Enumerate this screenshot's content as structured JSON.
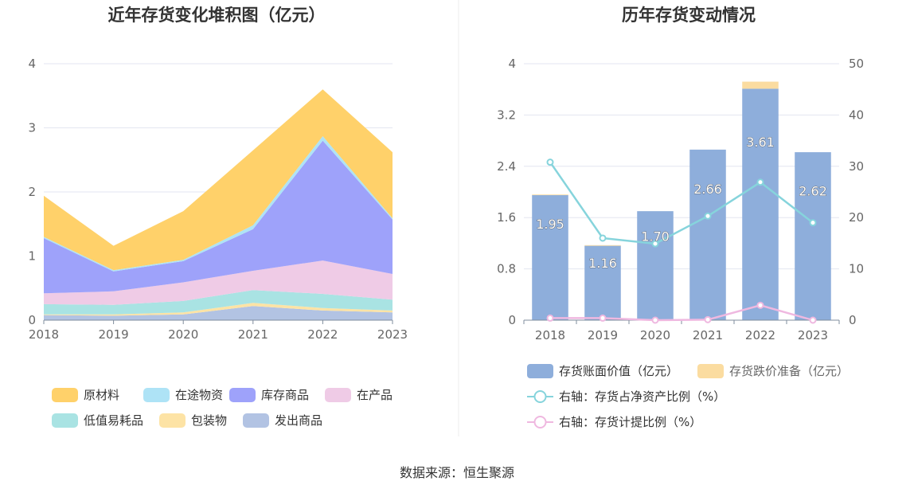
{
  "source": "数据来源：恒生聚源",
  "colors": {
    "原材料": "#ffd16a",
    "在途物资": "#aee3f6",
    "库存商品": "#9ea2fa",
    "在产品": "#efcbe6",
    "低值易耗品": "#a9e3e3",
    "包装物": "#fde3a5",
    "发出商品": "#b2c3e3",
    "bar_main": "#8eaedb",
    "bar_reserve": "#fbdca0",
    "line_ratio": "#86d4dc",
    "line_provision": "#efb8e0",
    "grid": "#e3e6f0",
    "axis": "#7f8c9c"
  },
  "chart_data": [
    {
      "type": "area",
      "stacked": true,
      "title": "近年存货变化堆积图（亿元）",
      "x": [
        "2018",
        "2019",
        "2020",
        "2021",
        "2022",
        "2023"
      ],
      "ylim": [
        0,
        4
      ],
      "yticks": [
        "0",
        "1",
        "2",
        "3",
        "4"
      ],
      "grid": true,
      "legend": "bottom",
      "series": [
        {
          "name": "发出商品",
          "values": [
            0.08,
            0.07,
            0.09,
            0.22,
            0.15,
            0.12
          ]
        },
        {
          "name": "包装物",
          "values": [
            0.01,
            0.02,
            0.03,
            0.05,
            0.04,
            0.03
          ]
        },
        {
          "name": "低值易耗品",
          "values": [
            0.16,
            0.15,
            0.18,
            0.2,
            0.22,
            0.17
          ]
        },
        {
          "name": "在产品",
          "values": [
            0.17,
            0.21,
            0.29,
            0.3,
            0.52,
            0.4
          ]
        },
        {
          "name": "库存商品",
          "values": [
            0.86,
            0.31,
            0.33,
            0.65,
            1.87,
            0.85
          ]
        },
        {
          "name": "在途物资",
          "values": [
            0.02,
            0.02,
            0.02,
            0.06,
            0.07,
            0.02
          ]
        },
        {
          "name": "原材料",
          "values": [
            0.64,
            0.38,
            0.76,
            1.17,
            0.73,
            1.03
          ]
        }
      ],
      "legend_order": [
        "原材料",
        "在途物资",
        "库存商品",
        "在产品",
        "低值易耗品",
        "包装物",
        "发出商品"
      ]
    },
    {
      "type": "bar",
      "stacked": true,
      "title": "历年存货变动情况",
      "categories": [
        "2018",
        "2019",
        "2020",
        "2021",
        "2022",
        "2023"
      ],
      "ylim": [
        0,
        4
      ],
      "yticks": [
        "0",
        "0.8",
        "1.6",
        "2.4",
        "3.2",
        "4"
      ],
      "y2lim": [
        0,
        50
      ],
      "y2ticks": [
        "0",
        "10",
        "20",
        "30",
        "40",
        "50"
      ],
      "grid": true,
      "legend": "bottom",
      "series": [
        {
          "name": "存货账面价值（亿元）",
          "values": [
            1.95,
            1.16,
            1.7,
            2.66,
            3.61,
            2.62
          ],
          "labels": [
            "1.95",
            "1.16",
            "1.70",
            "2.66",
            "3.61",
            "2.62"
          ]
        },
        {
          "name": "存货跌价准备（亿元）",
          "values": [
            0.01,
            0.01,
            0,
            0,
            0.11,
            0
          ]
        }
      ],
      "lines": [
        {
          "name": "右轴：存货占净资产比例（%）",
          "values": [
            30.8,
            16,
            14.9,
            20.3,
            26.9,
            19
          ]
        },
        {
          "name": "右轴：存货计提比例（%）",
          "values": [
            0.4,
            0.4,
            0.0,
            0.1,
            2.9,
            0.0
          ]
        }
      ]
    }
  ]
}
